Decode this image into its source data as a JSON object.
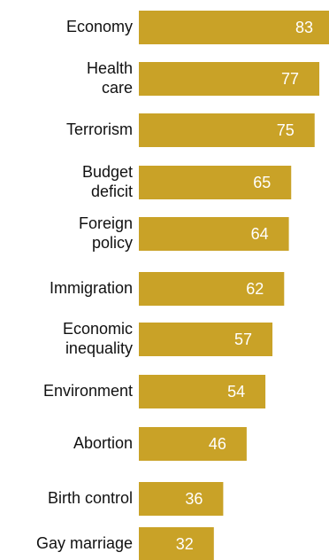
{
  "chart_data": {
    "type": "bar",
    "orientation": "horizontal",
    "categories": [
      "Economy",
      "Health care",
      "Terrorism",
      "Budget deficit",
      "Foreign policy",
      "Immigration",
      "Economic inequality",
      "Environment",
      "Abortion",
      "Birth control",
      "Gay marriage"
    ],
    "category_label_lines": [
      [
        "Economy"
      ],
      [
        "Health",
        "care"
      ],
      [
        "Terrorism"
      ],
      [
        "Budget",
        "deficit"
      ],
      [
        "Foreign",
        "policy"
      ],
      [
        "Immigration"
      ],
      [
        "Economic",
        "inequality"
      ],
      [
        "Environment"
      ],
      [
        "Abortion"
      ],
      [
        "Birth control"
      ],
      [
        "Gay marriage"
      ]
    ],
    "values": [
      83,
      77,
      75,
      65,
      64,
      62,
      57,
      54,
      46,
      36,
      32
    ],
    "data_labels": [
      "83",
      "77",
      "75",
      "65",
      "64",
      "62",
      "57",
      "54",
      "46",
      "36",
      "32"
    ],
    "bar_color": "#c9a227",
    "value_label_color": "#ffffff",
    "title": "",
    "xlabel": "",
    "ylabel": "",
    "xlim": [
      0,
      83
    ],
    "grid": false,
    "legend": "none"
  }
}
